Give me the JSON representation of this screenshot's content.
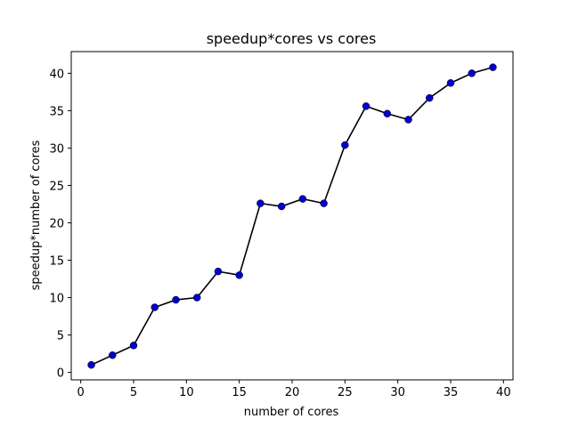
{
  "chart_data": {
    "type": "line",
    "title": "speedup*cores vs cores",
    "xlabel": "number of cores",
    "ylabel": "speedup*number of cores",
    "xlim": [
      -0.9,
      40.9
    ],
    "ylim": [
      -1.0,
      42.9
    ],
    "xticks": [
      0,
      5,
      10,
      15,
      20,
      25,
      30,
      35,
      40
    ],
    "yticks": [
      0,
      5,
      10,
      15,
      20,
      25,
      30,
      35,
      40
    ],
    "grid": false,
    "legend": "none",
    "series": [
      {
        "line_color": "#000000",
        "marker_color": "#0000cc",
        "marker": "circle",
        "x": [
          1,
          3,
          5,
          7,
          9,
          11,
          13,
          15,
          17,
          19,
          21,
          23,
          25,
          27,
          29,
          31,
          33,
          35,
          37,
          39
        ],
        "y": [
          1.0,
          2.3,
          3.6,
          8.7,
          9.7,
          10.0,
          13.5,
          13.0,
          22.6,
          22.2,
          23.2,
          22.6,
          30.4,
          35.6,
          34.6,
          33.8,
          36.7,
          38.7,
          40.0,
          40.8
        ]
      }
    ]
  }
}
